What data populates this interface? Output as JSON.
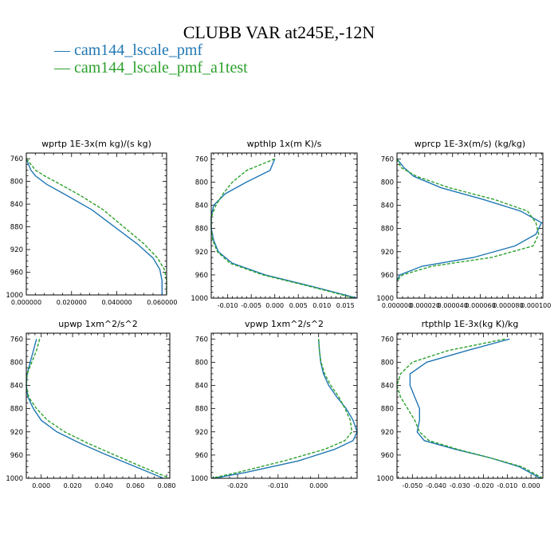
{
  "figure_title": "CLUBB VAR at245E,-12N",
  "legend": [
    {
      "label": "cam144_lscale_pmf",
      "color": "#1f77b4",
      "dash": "solid"
    },
    {
      "label": "cam144_lscale_pmf_a1test",
      "color": "#2ca02c",
      "dash": "dashed"
    }
  ],
  "chart_data": [
    {
      "type": "line",
      "title": "wprtp  1E-3x(m kg)/(s kg)",
      "xlim": [
        0.0,
        0.062
      ],
      "ylim": [
        1000,
        750
      ],
      "x_ticks": [
        0.0,
        0.02,
        0.04,
        0.06
      ],
      "x_tick_labels": [
        "0.000000",
        "0.020000",
        "0.040000",
        "0.060000"
      ],
      "y_ticks": [
        760,
        800,
        840,
        880,
        920,
        960,
        1000
      ],
      "y": [
        760,
        770,
        780,
        790,
        805,
        825,
        850,
        880,
        910,
        935,
        955,
        975,
        1000
      ],
      "series": [
        {
          "name": "cam144_lscale_pmf",
          "x": [
            0.0,
            0.001,
            0.002,
            0.004,
            0.009,
            0.018,
            0.029,
            0.039,
            0.049,
            0.056,
            0.059,
            0.06,
            0.06
          ]
        },
        {
          "name": "cam144_lscale_pmf_a1test",
          "x": [
            0.0,
            0.002,
            0.004,
            0.008,
            0.015,
            0.024,
            0.034,
            0.043,
            0.052,
            0.058,
            0.061,
            0.062,
            0.062
          ]
        }
      ]
    },
    {
      "type": "line",
      "title": "wpthlp  1x(m K)/s",
      "xlim": [
        -0.0135,
        0.0175
      ],
      "ylim": [
        1000,
        750
      ],
      "x_ticks": [
        -0.01,
        -0.005,
        0.0,
        0.005,
        0.01,
        0.015
      ],
      "x_tick_labels": [
        "-0.010",
        "-0.005",
        "0.000",
        "0.005",
        "0.010",
        "0.015"
      ],
      "y_ticks": [
        760,
        800,
        840,
        880,
        920,
        960,
        1000
      ],
      "y": [
        760,
        780,
        800,
        820,
        840,
        860,
        880,
        900,
        920,
        940,
        960,
        980,
        1000
      ],
      "series": [
        {
          "name": "cam144_lscale_pmf",
          "x": [
            0.0,
            -0.001,
            -0.006,
            -0.0105,
            -0.013,
            -0.0135,
            -0.0135,
            -0.013,
            -0.012,
            -0.009,
            -0.002,
            0.008,
            0.0175
          ]
        },
        {
          "name": "cam144_lscale_pmf_a1test",
          "x": [
            0.0,
            -0.006,
            -0.009,
            -0.011,
            -0.0125,
            -0.0135,
            -0.0135,
            -0.0132,
            -0.0122,
            -0.0095,
            -0.0025,
            0.0075,
            0.017
          ]
        }
      ]
    },
    {
      "type": "line",
      "title": "wprcp  1E-3x(m/s) (kg/kg)",
      "xlim": [
        0.0,
        0.000105
      ],
      "ylim": [
        1000,
        750
      ],
      "x_ticks": [
        0.0,
        2e-05,
        4e-05,
        6e-05,
        8e-05,
        0.0001
      ],
      "x_tick_labels": [
        "0.000000",
        "0.000020",
        "0.000040",
        "0.000060",
        "0.000080",
        "0.000100"
      ],
      "y_ticks": [
        760,
        800,
        840,
        880,
        920,
        960,
        1000
      ],
      "y": [
        760,
        775,
        790,
        810,
        830,
        850,
        870,
        890,
        910,
        930,
        945,
        960,
        970
      ],
      "series": [
        {
          "name": "cam144_lscale_pmf",
          "x": [
            0.0,
            5e-06,
            1.2e-05,
            3.2e-05,
            6.2e-05,
            8.9e-05,
            0.000104,
            0.0001,
            8.5e-05,
            5.5e-05,
            1.8e-05,
            2e-06,
            0.0
          ]
        },
        {
          "name": "cam144_lscale_pmf_a1test",
          "x": [
            0.0,
            3e-06,
            1.4e-05,
            3.8e-05,
            7e-05,
            9.4e-05,
            0.0001,
            0.000102,
            9.8e-05,
            6.8e-05,
            2.5e-05,
            4e-06,
            0.0
          ]
        }
      ]
    },
    {
      "type": "line",
      "title": "upwp  1xm^2/s^2",
      "xlim": [
        -0.0095,
        0.082
      ],
      "ylim": [
        1000,
        750
      ],
      "x_ticks": [
        0.0,
        0.02,
        0.04,
        0.06,
        0.08
      ],
      "x_tick_labels": [
        "0.000",
        "0.020",
        "0.040",
        "0.060",
        "0.080"
      ],
      "y_ticks": [
        760,
        800,
        840,
        880,
        920,
        960,
        1000
      ],
      "y": [
        760,
        780,
        800,
        820,
        840,
        860,
        880,
        900,
        920,
        940,
        960,
        980,
        1000
      ],
      "series": [
        {
          "name": "cam144_lscale_pmf",
          "x": [
            -0.003,
            -0.005,
            -0.007,
            -0.009,
            -0.0095,
            -0.0085,
            -0.005,
            0.0,
            0.01,
            0.025,
            0.042,
            0.06,
            0.078
          ]
        },
        {
          "name": "cam144_lscale_pmf_a1test",
          "x": [
            -0.001,
            -0.003,
            -0.006,
            -0.009,
            -0.0095,
            -0.008,
            -0.003,
            0.004,
            0.015,
            0.03,
            0.047,
            0.064,
            0.082
          ]
        }
      ]
    },
    {
      "type": "line",
      "title": "vpwp  1xm^2/s^2",
      "xlim": [
        -0.0265,
        0.0095
      ],
      "ylim": [
        1000,
        750
      ],
      "x_ticks": [
        -0.02,
        -0.01,
        0.0
      ],
      "x_tick_labels": [
        "-0.020",
        "-0.010",
        "0.000"
      ],
      "y_ticks": [
        760,
        800,
        840,
        880,
        920,
        960,
        1000
      ],
      "y": [
        760,
        780,
        800,
        820,
        840,
        860,
        880,
        900,
        920,
        935,
        950,
        970,
        990,
        1000
      ],
      "series": [
        {
          "name": "cam144_lscale_pmf",
          "x": [
            0.0,
            0.0002,
            0.0005,
            0.0012,
            0.0025,
            0.0045,
            0.0068,
            0.0085,
            0.0095,
            0.0085,
            0.004,
            -0.005,
            -0.018,
            -0.026
          ]
        },
        {
          "name": "cam144_lscale_pmf_a1test",
          "x": [
            0.0,
            0.0002,
            0.0006,
            0.0015,
            0.003,
            0.005,
            0.0065,
            0.0078,
            0.0082,
            0.0065,
            0.0015,
            -0.0085,
            -0.02,
            -0.0265
          ]
        }
      ]
    },
    {
      "type": "line",
      "title": "rtpthlp  1E-3x(kg K)/kg",
      "xlim": [
        -0.0565,
        0.005
      ],
      "ylim": [
        1000,
        750
      ],
      "x_ticks": [
        -0.05,
        -0.04,
        -0.03,
        -0.02,
        -0.01,
        0.0
      ],
      "x_tick_labels": [
        "-0.050",
        "-0.040",
        "-0.030",
        "-0.020",
        "-0.010",
        "0.000"
      ],
      "y_ticks": [
        760,
        800,
        840,
        880,
        920,
        960,
        1000
      ],
      "y": [
        760,
        780,
        800,
        820,
        840,
        860,
        880,
        900,
        920,
        935,
        950,
        965,
        980,
        1000
      ],
      "series": [
        {
          "name": "cam144_lscale_pmf",
          "x": [
            -0.009,
            -0.027,
            -0.044,
            -0.051,
            -0.051,
            -0.049,
            -0.047,
            -0.047,
            -0.048,
            -0.045,
            -0.032,
            -0.017,
            -0.005,
            0.004
          ]
        },
        {
          "name": "cam144_lscale_pmf_a1test",
          "x": [
            -0.011,
            -0.035,
            -0.05,
            -0.055,
            -0.0565,
            -0.055,
            -0.052,
            -0.049,
            -0.047,
            -0.043,
            -0.031,
            -0.017,
            -0.004,
            0.005
          ]
        }
      ]
    }
  ]
}
